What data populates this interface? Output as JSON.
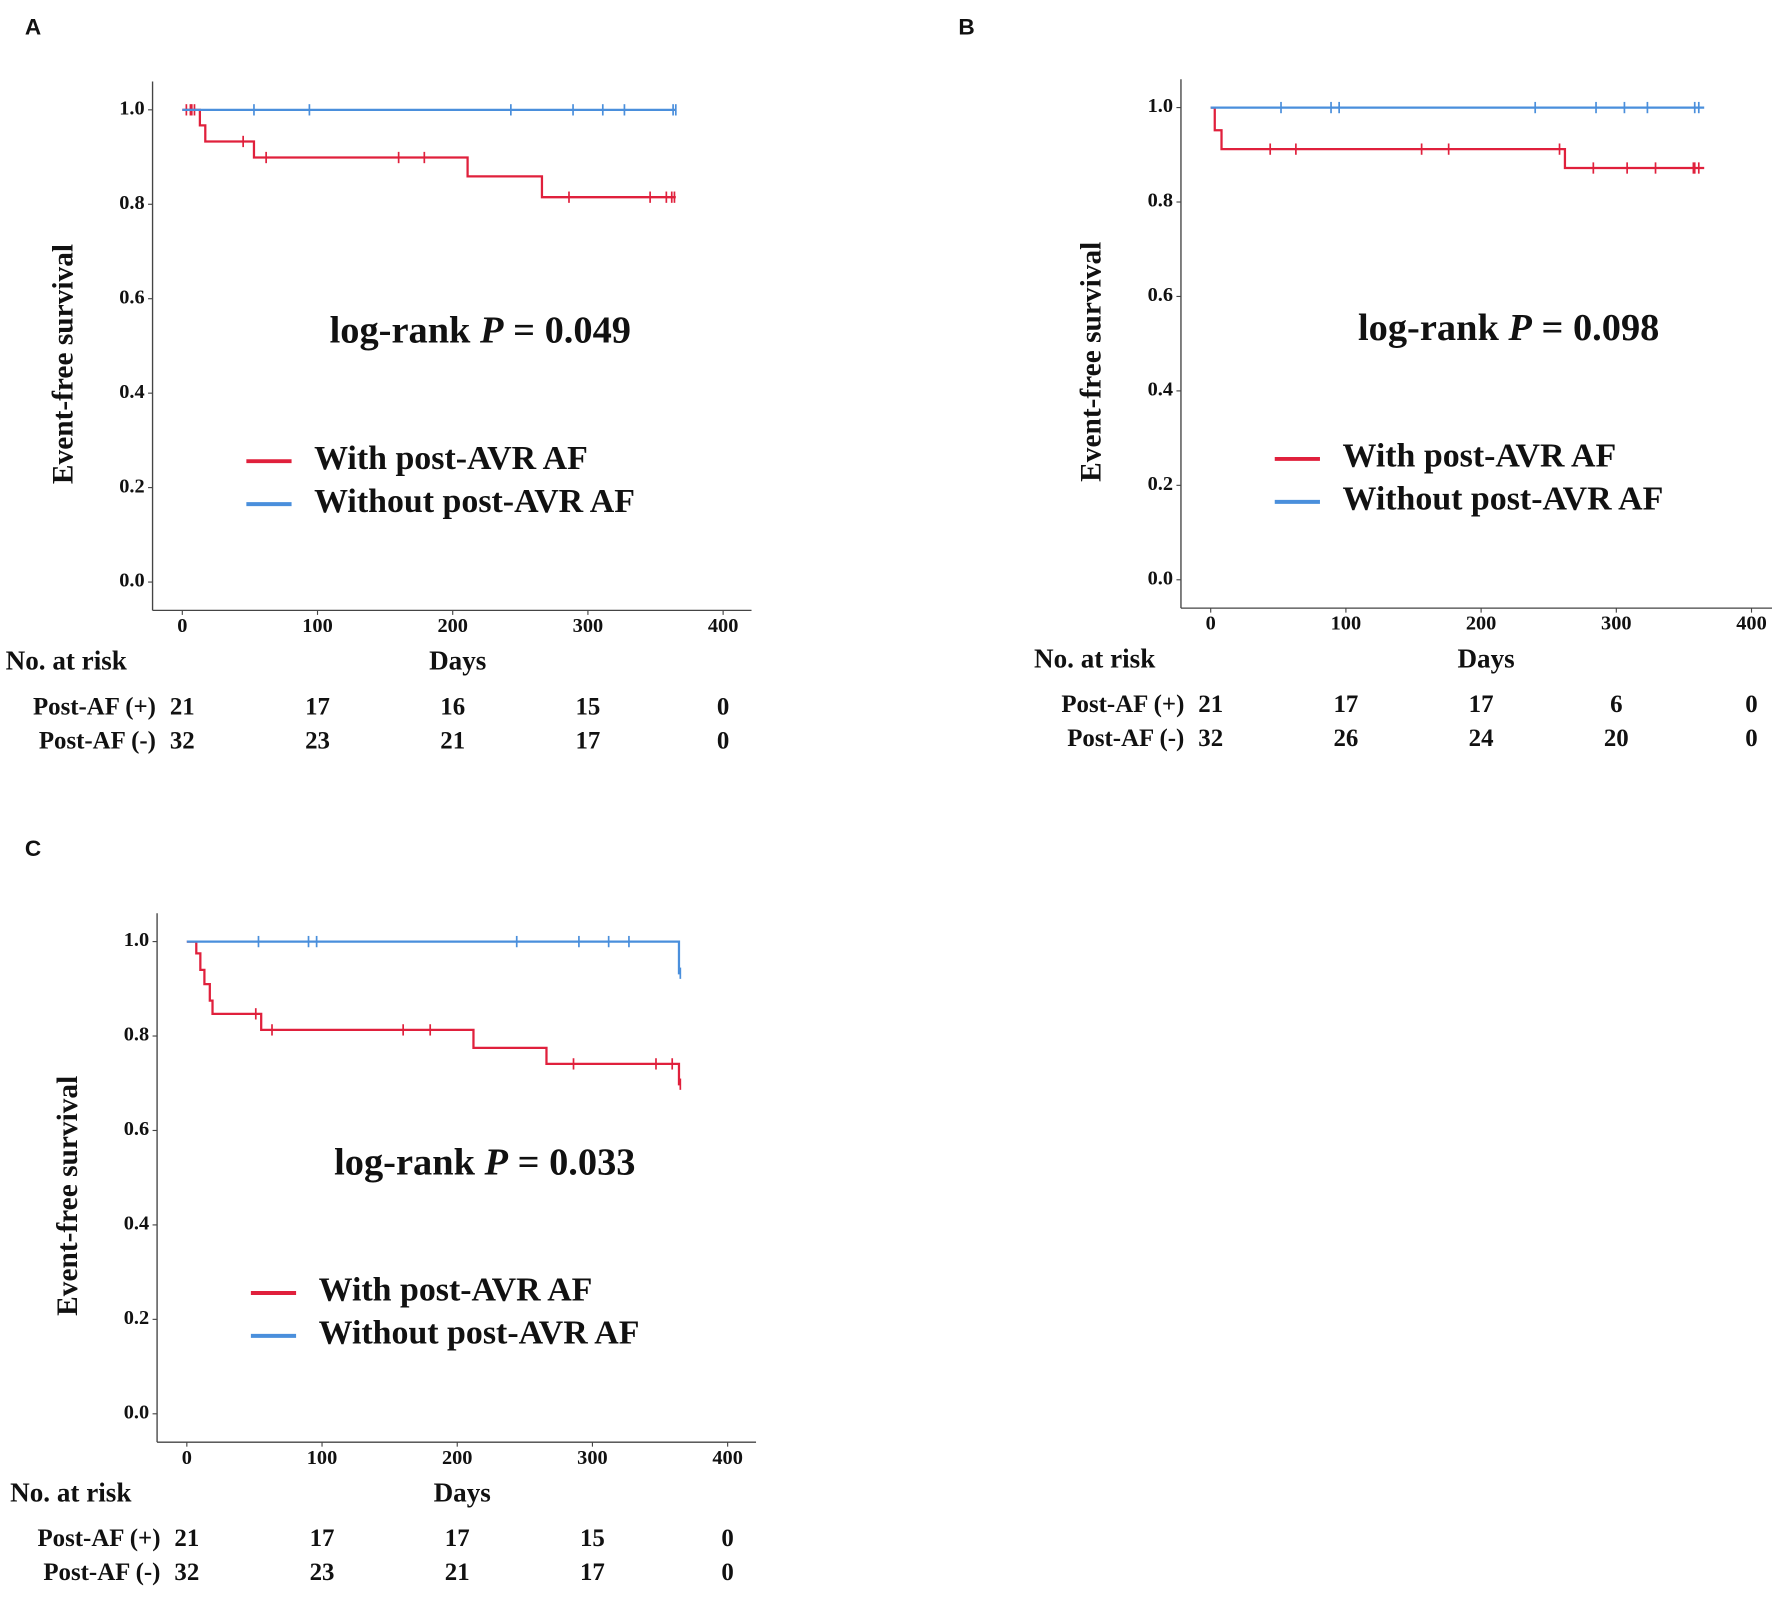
{
  "chart_data": [
    {
      "type": "step",
      "panel_label": "A",
      "ylabel": "Event-free survival",
      "xlabel": "Days",
      "xlim": [
        -22,
        421
      ],
      "ylim": [
        -0.06,
        1.06
      ],
      "xticks": [
        0,
        100,
        200,
        300,
        400
      ],
      "yticks": [
        {
          "value": 0,
          "label": "0.0"
        },
        0.2,
        0.4,
        0.6,
        0.8,
        {
          "value": 1,
          "label": "1.0"
        }
      ],
      "annotation": {
        "prefix": "log-rank ",
        "italic": "P",
        "suffix": " = 0.049"
      },
      "series": [
        {
          "name": "With post-AVR AF",
          "color": "#e0203c",
          "x": [
            0,
            13,
            17,
            53,
            211,
            266,
            365
          ],
          "values": [
            1,
            0.967,
            0.933,
            0.899,
            0.859,
            0.815,
            0.815
          ],
          "censored": [
            3,
            6,
            7,
            9,
            45,
            62,
            160,
            179,
            286,
            346,
            358,
            362,
            364
          ]
        },
        {
          "name": "Without post-AVR AF",
          "color": "#4a8fdc",
          "x": [
            0,
            365
          ],
          "values": [
            1,
            1
          ],
          "censored": [
            53,
            94,
            243,
            289,
            311,
            327,
            363,
            365
          ]
        }
      ],
      "risk_table": {
        "title": "No. at risk",
        "rows": [
          {
            "label": "Post-AF (+)",
            "values": [
              21,
              17,
              16,
              15,
              0
            ]
          },
          {
            "label": "Post-AF (-)",
            "values": [
              32,
              23,
              21,
              17,
              0
            ]
          }
        ]
      }
    },
    {
      "type": "step",
      "panel_label": "B",
      "ylabel": "Event-free survival",
      "xlabel": "Days",
      "xlim": [
        -22,
        421
      ],
      "ylim": [
        -0.06,
        1.06
      ],
      "xticks": [
        0,
        100,
        200,
        300,
        400
      ],
      "yticks": [
        {
          "value": 0,
          "label": "0.0"
        },
        0.2,
        0.4,
        0.6,
        0.8,
        {
          "value": 1,
          "label": "1.0"
        }
      ],
      "annotation": {
        "prefix": "log-rank ",
        "italic": "P",
        "suffix": " = 0.098"
      },
      "series": [
        {
          "name": "With post-AVR AF",
          "color": "#e0203c",
          "x": [
            0,
            3,
            8,
            262,
            365
          ],
          "values": [
            1,
            0.952,
            0.912,
            0.872,
            0.872
          ],
          "censored": [
            44,
            63,
            156,
            176,
            258,
            283,
            308,
            329,
            357,
            358,
            361
          ]
        },
        {
          "name": "Without post-AVR AF",
          "color": "#4a8fdc",
          "x": [
            0,
            365
          ],
          "values": [
            1,
            1
          ],
          "censored": [
            52,
            89,
            95,
            240,
            285,
            306,
            323,
            358,
            361
          ]
        }
      ],
      "risk_table": {
        "title": "No. at risk",
        "rows": [
          {
            "label": "Post-AF (+)",
            "values": [
              21,
              17,
              17,
              6,
              0
            ]
          },
          {
            "label": "Post-AF (-)",
            "values": [
              32,
              26,
              24,
              20,
              0
            ]
          }
        ]
      }
    },
    {
      "type": "step",
      "panel_label": "C",
      "ylabel": "Event-free survival",
      "xlabel": "Days",
      "xlim": [
        -22,
        421
      ],
      "ylim": [
        -0.06,
        1.06
      ],
      "xticks": [
        0,
        100,
        200,
        300,
        400
      ],
      "yticks": [
        {
          "value": 0,
          "label": "0.0"
        },
        0.2,
        0.4,
        0.6,
        0.8,
        {
          "value": 1,
          "label": "1.0"
        }
      ],
      "annotation": {
        "prefix": "log-rank ",
        "italic": "P",
        "suffix": " = 0.033"
      },
      "series": [
        {
          "name": "With post-AVR AF",
          "color": "#e0203c",
          "x": [
            0,
            7,
            10,
            13,
            17,
            19,
            55,
            212,
            266,
            364,
            365
          ],
          "values": [
            1,
            0.975,
            0.94,
            0.91,
            0.875,
            0.847,
            0.813,
            0.775,
            0.741,
            0.698,
            0.698
          ],
          "censored": [
            51,
            63,
            160,
            180,
            286,
            347,
            359,
            365
          ]
        },
        {
          "name": "Without post-AVR AF",
          "color": "#4a8fdc",
          "x": [
            0,
            364,
            365
          ],
          "values": [
            1,
            0.933,
            0.933
          ],
          "censored": [
            53,
            90,
            96,
            244,
            290,
            312,
            327,
            365
          ]
        }
      ],
      "risk_table": {
        "title": "No. at risk",
        "rows": [
          {
            "label": "Post-AF (+)",
            "values": [
              21,
              17,
              17,
              15,
              0
            ]
          },
          {
            "label": "Post-AF (-)",
            "values": [
              32,
              23,
              21,
              17,
              0
            ]
          }
        ]
      }
    }
  ]
}
